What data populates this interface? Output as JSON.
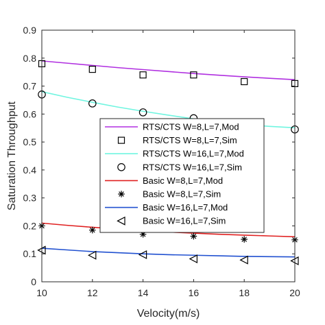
{
  "chart_data": {
    "type": "line",
    "title": "",
    "xlabel": "Velocity(m/s)",
    "ylabel": "Saturation Throughput",
    "xlim": [
      10,
      20
    ],
    "ylim": [
      0,
      0.9
    ],
    "xticks": [
      10,
      12,
      14,
      16,
      18,
      20
    ],
    "yticks": [
      0,
      0.1,
      0.2,
      0.3,
      0.4,
      0.5,
      0.6,
      0.7,
      0.8,
      0.9
    ],
    "grid": false,
    "legend_position": "center-right",
    "series": [
      {
        "name": "RTS/CTS W=8,L=7,Mod",
        "kind": "line",
        "color": "#b02fe0",
        "x": [
          10,
          11,
          12,
          13,
          14,
          15,
          16,
          17,
          18,
          19,
          20
        ],
        "y": [
          0.79,
          0.782,
          0.774,
          0.766,
          0.759,
          0.752,
          0.745,
          0.739,
          0.733,
          0.728,
          0.723
        ]
      },
      {
        "name": "RTS/CTS W=8,L=7,Sim",
        "kind": "marker",
        "marker": "square",
        "color": "#000000",
        "x": [
          10,
          12,
          14,
          16,
          18,
          20
        ],
        "y": [
          0.78,
          0.76,
          0.74,
          0.74,
          0.716,
          0.709
        ]
      },
      {
        "name": "RTS/CTS W=16,L=7,Mod",
        "kind": "line",
        "color": "#6ff5e0",
        "x": [
          10,
          11,
          12,
          13,
          14,
          15,
          16,
          17,
          18,
          19,
          20
        ],
        "y": [
          0.68,
          0.66,
          0.642,
          0.625,
          0.61,
          0.596,
          0.583,
          0.572,
          0.562,
          0.556,
          0.551
        ]
      },
      {
        "name": "RTS/CTS W=16,L=7,Sim",
        "kind": "marker",
        "marker": "circle",
        "color": "#000000",
        "x": [
          10,
          12,
          14,
          16,
          18,
          20
        ],
        "y": [
          0.67,
          0.638,
          0.606,
          0.585,
          0.565,
          0.545
        ]
      },
      {
        "name": "Basic  W=8,L=7,Mod",
        "kind": "line",
        "color": "#e02020",
        "x": [
          10,
          11,
          12,
          13,
          14,
          15,
          16,
          17,
          18,
          19,
          20
        ],
        "y": [
          0.21,
          0.202,
          0.195,
          0.189,
          0.183,
          0.178,
          0.174,
          0.17,
          0.167,
          0.164,
          0.161
        ]
      },
      {
        "name": "Basic  W=8,L=7,Sim",
        "kind": "marker",
        "marker": "asterisk",
        "color": "#000000",
        "x": [
          10,
          12,
          14,
          16,
          18,
          20
        ],
        "y": [
          0.2,
          0.185,
          0.17,
          0.163,
          0.152,
          0.15
        ]
      },
      {
        "name": "Basic W=16,L=7,Mod",
        "kind": "line",
        "color": "#2050d0",
        "x": [
          10,
          11,
          12,
          13,
          14,
          15,
          16,
          17,
          18,
          19,
          20
        ],
        "y": [
          0.12,
          0.114,
          0.108,
          0.104,
          0.1,
          0.097,
          0.095,
          0.093,
          0.091,
          0.09,
          0.089
        ]
      },
      {
        "name": "Basic W=16,L=7,Sim",
        "kind": "marker",
        "marker": "triangle-left",
        "color": "#000000",
        "x": [
          10,
          12,
          14,
          16,
          18,
          20
        ],
        "y": [
          0.113,
          0.095,
          0.097,
          0.082,
          0.078,
          0.075
        ]
      }
    ]
  }
}
